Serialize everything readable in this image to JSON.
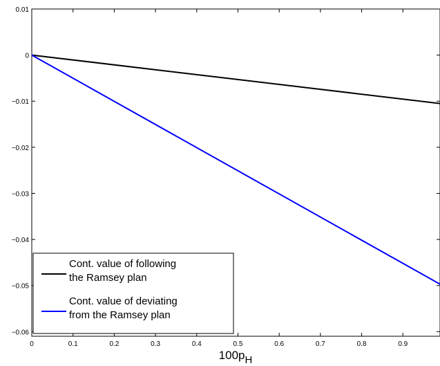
{
  "chart_data": {
    "type": "line",
    "xlabel": "100p",
    "xlabel_subscript": "H",
    "ylabel": "",
    "xlim": [
      0,
      0.99
    ],
    "ylim": [
      -0.061,
      0.01
    ],
    "xticks": [
      0,
      0.1,
      0.2,
      0.3,
      0.4,
      0.5,
      0.6,
      0.7,
      0.8,
      0.9
    ],
    "xtick_labels": [
      "0",
      "0.1",
      "0.2",
      "0.3",
      "0.4",
      "0.5",
      "0.6",
      "0.7",
      "0.8",
      "0.9"
    ],
    "yticks": [
      0.01,
      0,
      -0.01,
      -0.02,
      -0.03,
      -0.04,
      -0.05,
      -0.06
    ],
    "ytick_labels": [
      "0.01",
      "0",
      "−0.01",
      "−0.02",
      "−0.03",
      "−0.04",
      "−0.05",
      "−0.06"
    ],
    "grid": false,
    "legend_position": "bottom-left",
    "series": [
      {
        "name": "Cont. value of following the Ramsey plan",
        "legend_lines": [
          "Cont. value of following",
          "the Ramsey plan"
        ],
        "color": "#000000",
        "x": [
          0,
          0.99
        ],
        "y": [
          0,
          -0.0105
        ]
      },
      {
        "name": "Cont. value of deviating from the Ramsey plan",
        "legend_lines": [
          "Cont. value of deviating",
          "from the Ramsey plan"
        ],
        "color": "#0000ff",
        "x": [
          0,
          0.99
        ],
        "y": [
          0,
          -0.0497
        ]
      }
    ]
  }
}
